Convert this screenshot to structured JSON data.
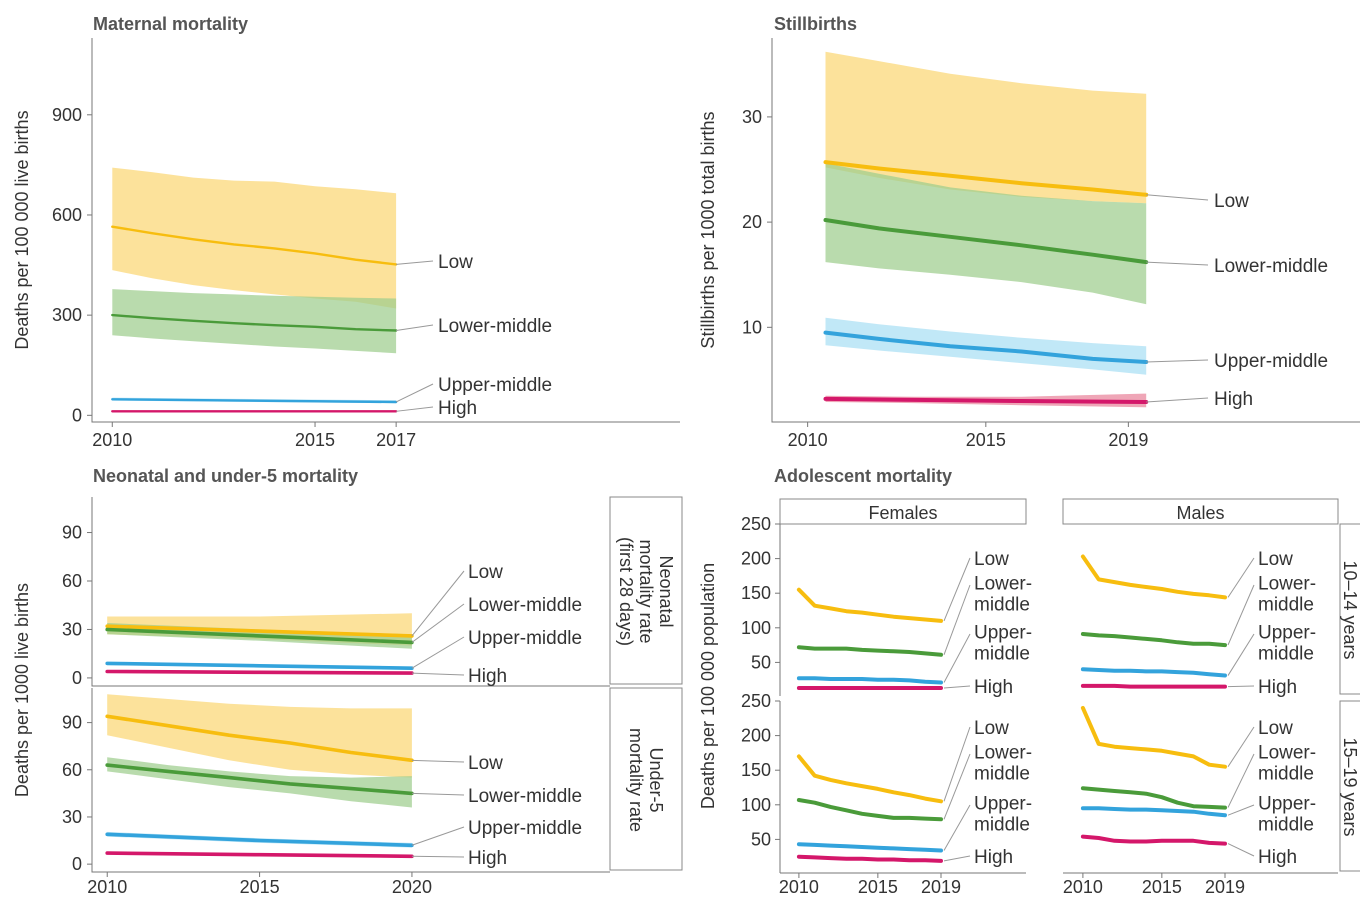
{
  "colors": {
    "Low": "#f7bd0f",
    "Lower-middle": "#4a9b3a",
    "Upper-middle": "#33a3dc",
    "High": "#d4176a",
    "Low_band": "#fbd775",
    "Lower-middle_band": "#9ecd8e",
    "Upper-middle_band": "#a9dff4",
    "High_band": "#e9849b"
  },
  "chart_data": [
    {
      "id": "maternal",
      "type": "line",
      "title": "Maternal mortality",
      "ylabel": "Deaths per 100 000 live births",
      "xticks": [
        2010,
        2015,
        2017
      ],
      "yticks": [
        0,
        300,
        600,
        900
      ],
      "xlim": [
        2009.5,
        2024
      ],
      "ylim": [
        -20,
        1130
      ],
      "series": [
        {
          "name": "Low",
          "x": [
            2010,
            2011,
            2012,
            2013,
            2014,
            2015,
            2016,
            2017
          ],
          "y": [
            565,
            545,
            527,
            512,
            500,
            485,
            466,
            452
          ],
          "lower": [
            435,
            410,
            390,
            375,
            362,
            350,
            340,
            320
          ],
          "upper": [
            742,
            728,
            712,
            703,
            700,
            686,
            677,
            665
          ]
        },
        {
          "name": "Lower-middle",
          "x": [
            2010,
            2011,
            2012,
            2013,
            2014,
            2015,
            2016,
            2017
          ],
          "y": [
            300,
            291,
            283,
            276,
            270,
            265,
            258,
            254
          ],
          "lower": [
            240,
            230,
            222,
            214,
            206,
            200,
            193,
            186
          ],
          "upper": [
            378,
            372,
            366,
            362,
            358,
            355,
            352,
            350
          ]
        },
        {
          "name": "Upper-middle",
          "x": [
            2010,
            2017
          ],
          "y": [
            48,
            40
          ],
          "lower": [
            44,
            36
          ],
          "upper": [
            53,
            45
          ]
        },
        {
          "name": "High",
          "x": [
            2010,
            2017
          ],
          "y": [
            12,
            12
          ],
          "lower": [
            11,
            11
          ],
          "upper": [
            13,
            13
          ]
        }
      ]
    },
    {
      "id": "stillbirths",
      "type": "line",
      "title": "Stillbirths",
      "ylabel": "Stillbirths per 1000 total births",
      "xticks": [
        2010,
        2015,
        2019
      ],
      "yticks": [
        10,
        20,
        30
      ],
      "xlim": [
        2009.0,
        2025.5
      ],
      "ylim": [
        1,
        37.5
      ],
      "series": [
        {
          "name": "Low",
          "x": [
            2010.5,
            2012,
            2014,
            2016,
            2018,
            2019.5
          ],
          "y": [
            25.7,
            25.1,
            24.4,
            23.7,
            23.1,
            22.6
          ],
          "lower": [
            25.2,
            24.2,
            23.1,
            22.4,
            22.0,
            21.8
          ],
          "upper": [
            36.2,
            35.3,
            34.1,
            33.2,
            32.5,
            32.2
          ]
        },
        {
          "name": "Lower-middle",
          "x": [
            2010.5,
            2012,
            2014,
            2016,
            2018,
            2019.5
          ],
          "y": [
            20.2,
            19.4,
            18.6,
            17.8,
            16.9,
            16.2
          ],
          "lower": [
            16.2,
            15.6,
            15.0,
            14.3,
            13.3,
            12.2
          ],
          "upper": [
            25.6,
            24.6,
            23.3,
            22.5,
            22.0,
            21.8
          ]
        },
        {
          "name": "Upper-middle",
          "x": [
            2010.5,
            2012,
            2014,
            2016,
            2018,
            2019.5
          ],
          "y": [
            9.5,
            8.9,
            8.2,
            7.7,
            7.0,
            6.7
          ],
          "lower": [
            8.3,
            7.8,
            7.2,
            6.6,
            6.0,
            5.5
          ],
          "upper": [
            10.9,
            10.3,
            9.6,
            9.0,
            8.5,
            8.2
          ]
        },
        {
          "name": "High",
          "x": [
            2010.5,
            2013,
            2016,
            2019.5
          ],
          "y": [
            3.2,
            3.1,
            3.0,
            2.9
          ],
          "lower": [
            2.9,
            2.8,
            2.6,
            2.4
          ],
          "upper": [
            3.5,
            3.4,
            3.4,
            3.7
          ]
        }
      ]
    },
    {
      "id": "neonatal",
      "type": "line",
      "title": "Neonatal and under-5 mortality",
      "ylabel": "Deaths per 1000 live births",
      "strip": "Neonatal mortality rate (first 28 days)",
      "strip_lines": [
        "Neonatal",
        "mortality rate",
        "(first 28 days)"
      ],
      "xticks": [],
      "yticks": [
        0,
        30,
        60,
        90
      ],
      "xlim": [
        2009.5,
        2026.5
      ],
      "ylim": [
        -5,
        112
      ],
      "series": [
        {
          "name": "Low",
          "x": [
            2010,
            2015,
            2020
          ],
          "y": [
            32,
            29,
            26
          ],
          "lower": [
            27,
            24,
            20
          ],
          "upper": [
            38,
            38,
            40
          ]
        },
        {
          "name": "Lower-middle",
          "x": [
            2010,
            2015,
            2020
          ],
          "y": [
            30,
            26,
            22
          ],
          "lower": [
            27,
            23,
            18
          ],
          "upper": [
            34,
            30,
            27
          ]
        },
        {
          "name": "Upper-middle",
          "x": [
            2010,
            2015,
            2020
          ],
          "y": [
            9,
            7.5,
            6
          ],
          "lower": [
            8,
            6.5,
            5
          ],
          "upper": [
            10,
            8.5,
            7
          ]
        },
        {
          "name": "High",
          "x": [
            2010,
            2015,
            2020
          ],
          "y": [
            4,
            3.5,
            3
          ],
          "lower": [
            3.5,
            3,
            2.5
          ],
          "upper": [
            4.5,
            4,
            3.5
          ]
        }
      ]
    },
    {
      "id": "under5",
      "type": "line",
      "strip": "Under-5 mortality rate",
      "strip_lines": [
        "Under-5",
        "mortality rate"
      ],
      "xticks": [
        2010,
        2015,
        2020
      ],
      "yticks": [
        0,
        30,
        60,
        90
      ],
      "xlim": [
        2009.5,
        2026.5
      ],
      "ylim": [
        -5,
        112
      ],
      "series": [
        {
          "name": "Low",
          "x": [
            2010,
            2012,
            2014,
            2016,
            2018,
            2020
          ],
          "y": [
            94,
            88,
            82,
            77,
            71,
            66
          ],
          "lower": [
            82,
            74,
            66,
            60,
            57,
            55
          ],
          "upper": [
            108,
            105,
            102,
            100,
            99,
            99
          ]
        },
        {
          "name": "Lower-middle",
          "x": [
            2010,
            2012,
            2014,
            2016,
            2018,
            2020
          ],
          "y": [
            63,
            59,
            55,
            51,
            48,
            45
          ],
          "lower": [
            59,
            54,
            49,
            45,
            40,
            36
          ],
          "upper": [
            68,
            63,
            59,
            56,
            55,
            56
          ]
        },
        {
          "name": "Upper-middle",
          "x": [
            2010,
            2015,
            2020
          ],
          "y": [
            19,
            15,
            12
          ],
          "lower": [
            17.5,
            13.5,
            10.5
          ],
          "upper": [
            20.5,
            16.5,
            13.5
          ]
        },
        {
          "name": "High",
          "x": [
            2010,
            2015,
            2020
          ],
          "y": [
            7,
            6,
            5
          ],
          "lower": [
            6.5,
            5.5,
            4.5
          ],
          "upper": [
            7.5,
            6.5,
            5.5
          ]
        }
      ]
    },
    {
      "id": "adolescent",
      "type": "line",
      "title": "Adolescent mortality",
      "ylabel": "Deaths per 100 000 population",
      "yticks": [
        50,
        100,
        150,
        200,
        250
      ],
      "xticks": [
        2010,
        2015,
        2019
      ],
      "columns": [
        "Females",
        "Males"
      ],
      "rows": [
        "10–14 years",
        "15–19 years"
      ],
      "panels": [
        {
          "column": "Females",
          "row": "10–14 years",
          "series": [
            {
              "name": "Low",
              "x": [
                2010,
                2011,
                2012,
                2013,
                2014,
                2015,
                2016,
                2017,
                2018,
                2019
              ],
              "y": [
                155,
                132,
                128,
                124,
                122,
                119,
                116,
                114,
                112,
                110
              ]
            },
            {
              "name": "Lower-middle",
              "x": [
                2010,
                2011,
                2012,
                2013,
                2014,
                2015,
                2016,
                2017,
                2018,
                2019
              ],
              "y": [
                72,
                70,
                70,
                70,
                68,
                67,
                66,
                65,
                63,
                61
              ]
            },
            {
              "name": "Upper-middle",
              "x": [
                2010,
                2011,
                2012,
                2013,
                2014,
                2015,
                2016,
                2017,
                2018,
                2019
              ],
              "y": [
                27,
                27,
                26,
                26,
                26,
                25,
                25,
                24,
                22,
                21
              ]
            },
            {
              "name": "High",
              "x": [
                2010,
                2011,
                2012,
                2013,
                2014,
                2015,
                2016,
                2017,
                2018,
                2019
              ],
              "y": [
                13,
                13,
                13,
                13,
                13,
                13,
                13,
                13,
                13,
                13
              ]
            }
          ]
        },
        {
          "column": "Males",
          "row": "10–14 years",
          "series": [
            {
              "name": "Low",
              "x": [
                2010,
                2011,
                2012,
                2013,
                2014,
                2015,
                2016,
                2017,
                2018,
                2019
              ],
              "y": [
                203,
                170,
                166,
                162,
                159,
                156,
                152,
                149,
                147,
                144
              ]
            },
            {
              "name": "Lower-middle",
              "x": [
                2010,
                2011,
                2012,
                2013,
                2014,
                2015,
                2016,
                2017,
                2018,
                2019
              ],
              "y": [
                91,
                89,
                88,
                86,
                84,
                82,
                79,
                77,
                77,
                75
              ]
            },
            {
              "name": "Upper-middle",
              "x": [
                2010,
                2011,
                2012,
                2013,
                2014,
                2015,
                2016,
                2017,
                2018,
                2019
              ],
              "y": [
                40,
                39,
                38,
                38,
                37,
                37,
                36,
                35,
                33,
                31
              ]
            },
            {
              "name": "High",
              "x": [
                2010,
                2011,
                2012,
                2013,
                2014,
                2015,
                2016,
                2017,
                2018,
                2019
              ],
              "y": [
                16,
                16,
                16,
                15,
                15,
                15,
                15,
                15,
                15,
                15
              ]
            }
          ]
        },
        {
          "column": "Females",
          "row": "15–19 years",
          "series": [
            {
              "name": "Low",
              "x": [
                2010,
                2011,
                2012,
                2013,
                2014,
                2015,
                2016,
                2017,
                2018,
                2019
              ],
              "y": [
                170,
                142,
                136,
                131,
                127,
                123,
                118,
                114,
                109,
                105
              ]
            },
            {
              "name": "Lower-middle",
              "x": [
                2010,
                2011,
                2012,
                2013,
                2014,
                2015,
                2016,
                2017,
                2018,
                2019
              ],
              "y": [
                107,
                103,
                97,
                92,
                87,
                84,
                81,
                81,
                80,
                79
              ]
            },
            {
              "name": "Upper-middle",
              "x": [
                2010,
                2011,
                2012,
                2013,
                2014,
                2015,
                2016,
                2017,
                2018,
                2019
              ],
              "y": [
                43,
                42,
                41,
                40,
                39,
                38,
                37,
                36,
                35,
                34
              ]
            },
            {
              "name": "High",
              "x": [
                2010,
                2011,
                2012,
                2013,
                2014,
                2015,
                2016,
                2017,
                2018,
                2019
              ],
              "y": [
                25,
                24,
                23,
                22,
                22,
                21,
                21,
                20,
                20,
                19
              ]
            }
          ]
        },
        {
          "column": "Males",
          "row": "15–19 years",
          "series": [
            {
              "name": "Low",
              "x": [
                2010,
                2011,
                2012,
                2013,
                2014,
                2015,
                2016,
                2017,
                2018,
                2019
              ],
              "y": [
                240,
                188,
                184,
                182,
                180,
                178,
                174,
                170,
                158,
                155
              ]
            },
            {
              "name": "Lower-middle",
              "x": [
                2010,
                2011,
                2012,
                2013,
                2014,
                2015,
                2016,
                2017,
                2018,
                2019
              ],
              "y": [
                124,
                122,
                120,
                118,
                116,
                111,
                103,
                98,
                97,
                96
              ]
            },
            {
              "name": "Upper-middle",
              "x": [
                2010,
                2011,
                2012,
                2013,
                2014,
                2015,
                2016,
                2017,
                2018,
                2019
              ],
              "y": [
                95,
                95,
                94,
                93,
                93,
                92,
                91,
                90,
                87,
                85
              ]
            },
            {
              "name": "High",
              "x": [
                2010,
                2011,
                2012,
                2013,
                2014,
                2015,
                2016,
                2017,
                2018,
                2019
              ],
              "y": [
                54,
                52,
                48,
                47,
                47,
                48,
                48,
                48,
                45,
                44
              ]
            }
          ]
        }
      ]
    }
  ],
  "adolescent_labels": {
    "Low": [
      "Low"
    ],
    "Lower-middle": [
      "Lower-",
      "middle"
    ],
    "Upper-middle": [
      "Upper-",
      "middle"
    ],
    "High": [
      "High"
    ]
  }
}
